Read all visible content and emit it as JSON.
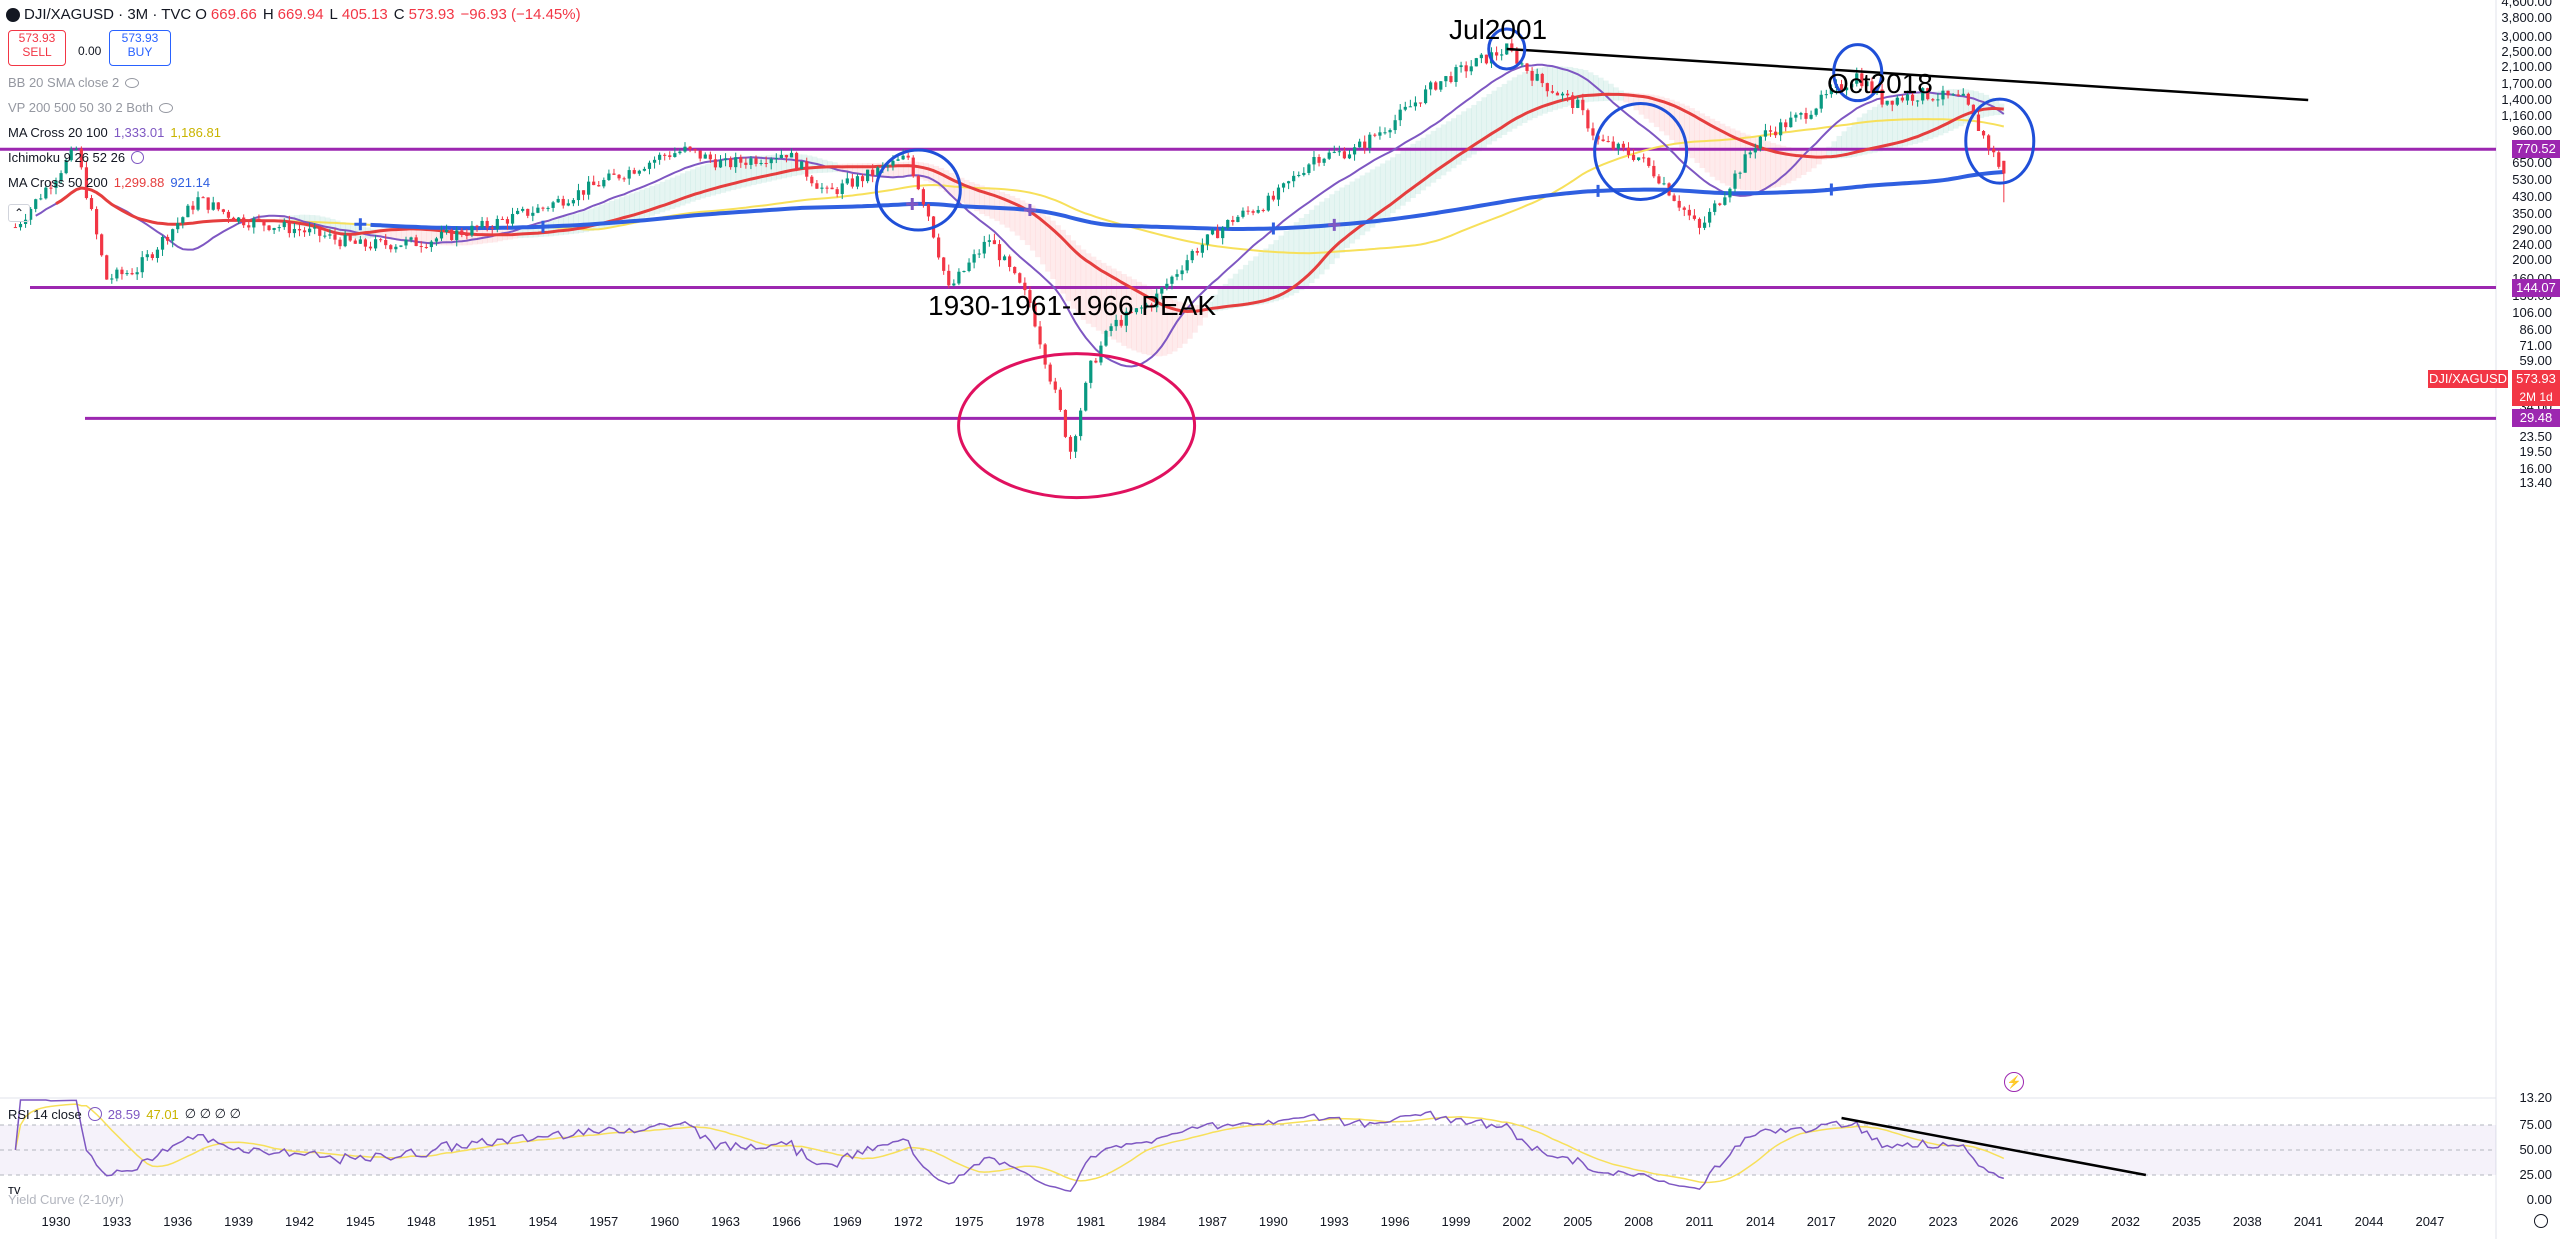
{
  "header": {
    "symbol": "DJI/XAGUSD · 3M · TVC",
    "o_label": "O",
    "o": "669.66",
    "h_label": "H",
    "h": "669.94",
    "l_label": "L",
    "l": "405.13",
    "c_label": "C",
    "c": "573.93",
    "change": "−96.93 (−14.45%)"
  },
  "trade": {
    "sell_price": "573.93",
    "sell_label": "SELL",
    "spread": "0.00",
    "buy_price": "573.93",
    "buy_label": "BUY"
  },
  "indicators": [
    {
      "name": "BB 20 SMA close 2",
      "hidden": true,
      "v1": "",
      "v2": ""
    },
    {
      "name": "VP 200 500 50 30 2 Both",
      "hidden": true,
      "v1": "",
      "v2": ""
    },
    {
      "name": "MA Cross 20 100",
      "hidden": false,
      "v1": "1,333.01",
      "v2": "1,186.81"
    },
    {
      "name": "Ichimoku 9 26 52 26",
      "hidden": false,
      "v1": "",
      "v2": ""
    },
    {
      "name": "MA Cross 50 200",
      "hidden": false,
      "v1": "1,299.88",
      "v2": "921.14"
    }
  ],
  "price_axis": [
    "4,600.00",
    "3,800.00",
    "3,000.00",
    "2,500.00",
    "2,100.00",
    "1,700.00",
    "1,400.00",
    "1,160.00",
    "960.00",
    "770.00",
    "650.00",
    "530.00",
    "430.00",
    "350.00",
    "290.00",
    "240.00",
    "200.00",
    "160.00",
    "130.00",
    "106.00",
    "86.00",
    "71.00",
    "59.00",
    "49.00",
    "41.00",
    "34.00",
    "28.00",
    "23.50",
    "19.50",
    "16.00",
    "13.40"
  ],
  "price_boxes": [
    {
      "value": "770.52",
      "color": "#9c27b0"
    },
    {
      "value": "144.07",
      "color": "#9c27b0"
    },
    {
      "value": "29.48",
      "color": "#9c27b0"
    }
  ],
  "last_price": {
    "symbol": "DJI/XAGUSD",
    "value": "573.93",
    "countdown": "2M 1d"
  },
  "time_axis": [
    "1930",
    "1933",
    "1936",
    "1939",
    "1942",
    "1945",
    "1948",
    "1951",
    "1954",
    "1957",
    "1960",
    "1963",
    "1966",
    "1969",
    "1972",
    "1975",
    "1978",
    "1981",
    "1984",
    "1987",
    "1990",
    "1993",
    "1996",
    "1999",
    "2002",
    "2005",
    "2008",
    "2011",
    "2014",
    "2017",
    "2020",
    "2023",
    "2026",
    "2029",
    "2032",
    "2035",
    "2038",
    "2041",
    "2044",
    "2047"
  ],
  "annotations": {
    "peak_label": "1930-1961-1966 PEAK",
    "jul2001": "Jul2001",
    "oct2018": "Oct2018"
  },
  "rsi": {
    "name": "RSI 14 close",
    "v1": "28.59",
    "v2": "47.01",
    "extras": "∅ ∅ ∅ ∅",
    "axis": [
      "75.00",
      "50.00",
      "25.00",
      "0.00"
    ],
    "top_cut": "13.20"
  },
  "yield_curve": "Yield Curve (2-10yr)",
  "colors": {
    "up": "#089981",
    "down": "#f23645",
    "ma20": "#7e57c2",
    "ma100": "#f7e05a",
    "ma50": "#e53e3e",
    "ma200": "#2f5fe0",
    "level": "#9c27b0",
    "trend": "#000000",
    "circle": "#1f4fd8",
    "low_circle": "#e0115f",
    "rsi": "#7e57c2",
    "rsi_ma": "#f7e05a"
  },
  "chart_data": {
    "type": "candlestick",
    "frequency": "3M",
    "symbol": "DJI/XAGUSD",
    "ylog": true,
    "ylim": [
      13.4,
      4600
    ],
    "xlim": [
      1928,
      2049
    ],
    "horizontal_levels": [
      770.52,
      144.07,
      29.48
    ],
    "last_close": 573.93,
    "approx_path": [
      {
        "year": 1928,
        "value": 300
      },
      {
        "year": 1930,
        "value": 560
      },
      {
        "year": 1931,
        "value": 770
      },
      {
        "year": 1932.5,
        "value": 160
      },
      {
        "year": 1934,
        "value": 180
      },
      {
        "year": 1937,
        "value": 420
      },
      {
        "year": 1939,
        "value": 330
      },
      {
        "year": 1942,
        "value": 290
      },
      {
        "year": 1945,
        "value": 240
      },
      {
        "year": 1948,
        "value": 250
      },
      {
        "year": 1951,
        "value": 300
      },
      {
        "year": 1954,
        "value": 380
      },
      {
        "year": 1957,
        "value": 520
      },
      {
        "year": 1960,
        "value": 720
      },
      {
        "year": 1961,
        "value": 760
      },
      {
        "year": 1963,
        "value": 640
      },
      {
        "year": 1966,
        "value": 740
      },
      {
        "year": 1968,
        "value": 450
      },
      {
        "year": 1970,
        "value": 560
      },
      {
        "year": 1972,
        "value": 700
      },
      {
        "year": 1973,
        "value": 350
      },
      {
        "year": 1974,
        "value": 140
      },
      {
        "year": 1976,
        "value": 260
      },
      {
        "year": 1978,
        "value": 120
      },
      {
        "year": 1980,
        "value": 20
      },
      {
        "year": 1981,
        "value": 55
      },
      {
        "year": 1982,
        "value": 90
      },
      {
        "year": 1984,
        "value": 120
      },
      {
        "year": 1986,
        "value": 220
      },
      {
        "year": 1988,
        "value": 330
      },
      {
        "year": 1990,
        "value": 420
      },
      {
        "year": 1992,
        "value": 700
      },
      {
        "year": 1994,
        "value": 760
      },
      {
        "year": 1996,
        "value": 1100
      },
      {
        "year": 1998,
        "value": 1700
      },
      {
        "year": 2000,
        "value": 2200
      },
      {
        "year": 2001.5,
        "value": 2600
      },
      {
        "year": 2003,
        "value": 1800
      },
      {
        "year": 2005,
        "value": 1300
      },
      {
        "year": 2006,
        "value": 850
      },
      {
        "year": 2008,
        "value": 700
      },
      {
        "year": 2009,
        "value": 550
      },
      {
        "year": 2011,
        "value": 290
      },
      {
        "year": 2012,
        "value": 420
      },
      {
        "year": 2014,
        "value": 900
      },
      {
        "year": 2016,
        "value": 1150
      },
      {
        "year": 2018.75,
        "value": 1900
      },
      {
        "year": 2020,
        "value": 1400
      },
      {
        "year": 2022,
        "value": 1500
      },
      {
        "year": 2024,
        "value": 1400
      },
      {
        "year": 2025,
        "value": 900
      },
      {
        "year": 2026,
        "value": 573.93
      }
    ],
    "trendline": [
      {
        "year": 2001.5,
        "value": 2600
      },
      {
        "year": 2041,
        "value": 1400
      }
    ],
    "rsi_trendline": [
      {
        "year": 2018,
        "rsi": 82
      },
      {
        "year": 2033,
        "rsi": 25
      }
    ]
  }
}
